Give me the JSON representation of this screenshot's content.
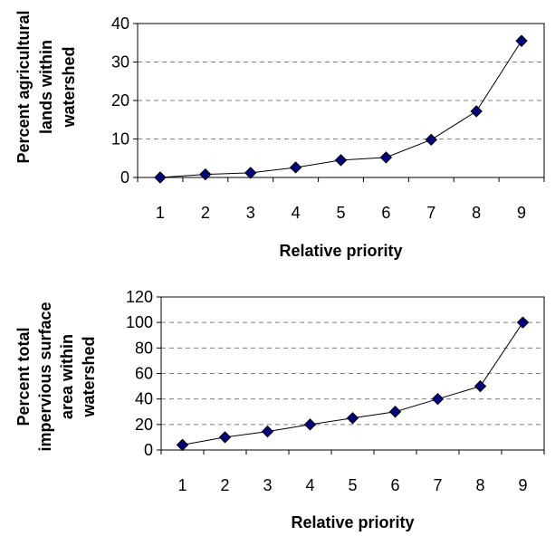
{
  "chart_data": [
    {
      "type": "line",
      "xlabel": "Relative priority",
      "ylabel_lines": [
        "Percent agricultural",
        "lands within",
        "watershed"
      ],
      "x": [
        1,
        2,
        3,
        4,
        5,
        6,
        7,
        8,
        9
      ],
      "series": [
        {
          "values": [
            0,
            0.8,
            1.2,
            2.6,
            4.5,
            5.2,
            9.8,
            17.2,
            35.5
          ]
        }
      ],
      "ylim": [
        0,
        40
      ],
      "yticks": [
        0,
        10,
        20,
        30,
        40
      ],
      "grid": true,
      "marker": "diamond",
      "marker_color": "#000080",
      "line_color": "#000000"
    },
    {
      "type": "line",
      "xlabel": "Relative priority",
      "ylabel_lines": [
        "Percent total",
        "impervious surface",
        "area within",
        "watershed"
      ],
      "x": [
        1,
        2,
        3,
        4,
        5,
        6,
        7,
        8,
        9
      ],
      "series": [
        {
          "values": [
            4,
            10,
            14.5,
            20,
            25,
            30,
            40,
            50,
            100
          ]
        }
      ],
      "ylim": [
        0,
        120
      ],
      "yticks": [
        0,
        20,
        40,
        60,
        80,
        100,
        120
      ],
      "grid": true,
      "marker": "diamond",
      "marker_color": "#000080",
      "line_color": "#000000"
    }
  ]
}
